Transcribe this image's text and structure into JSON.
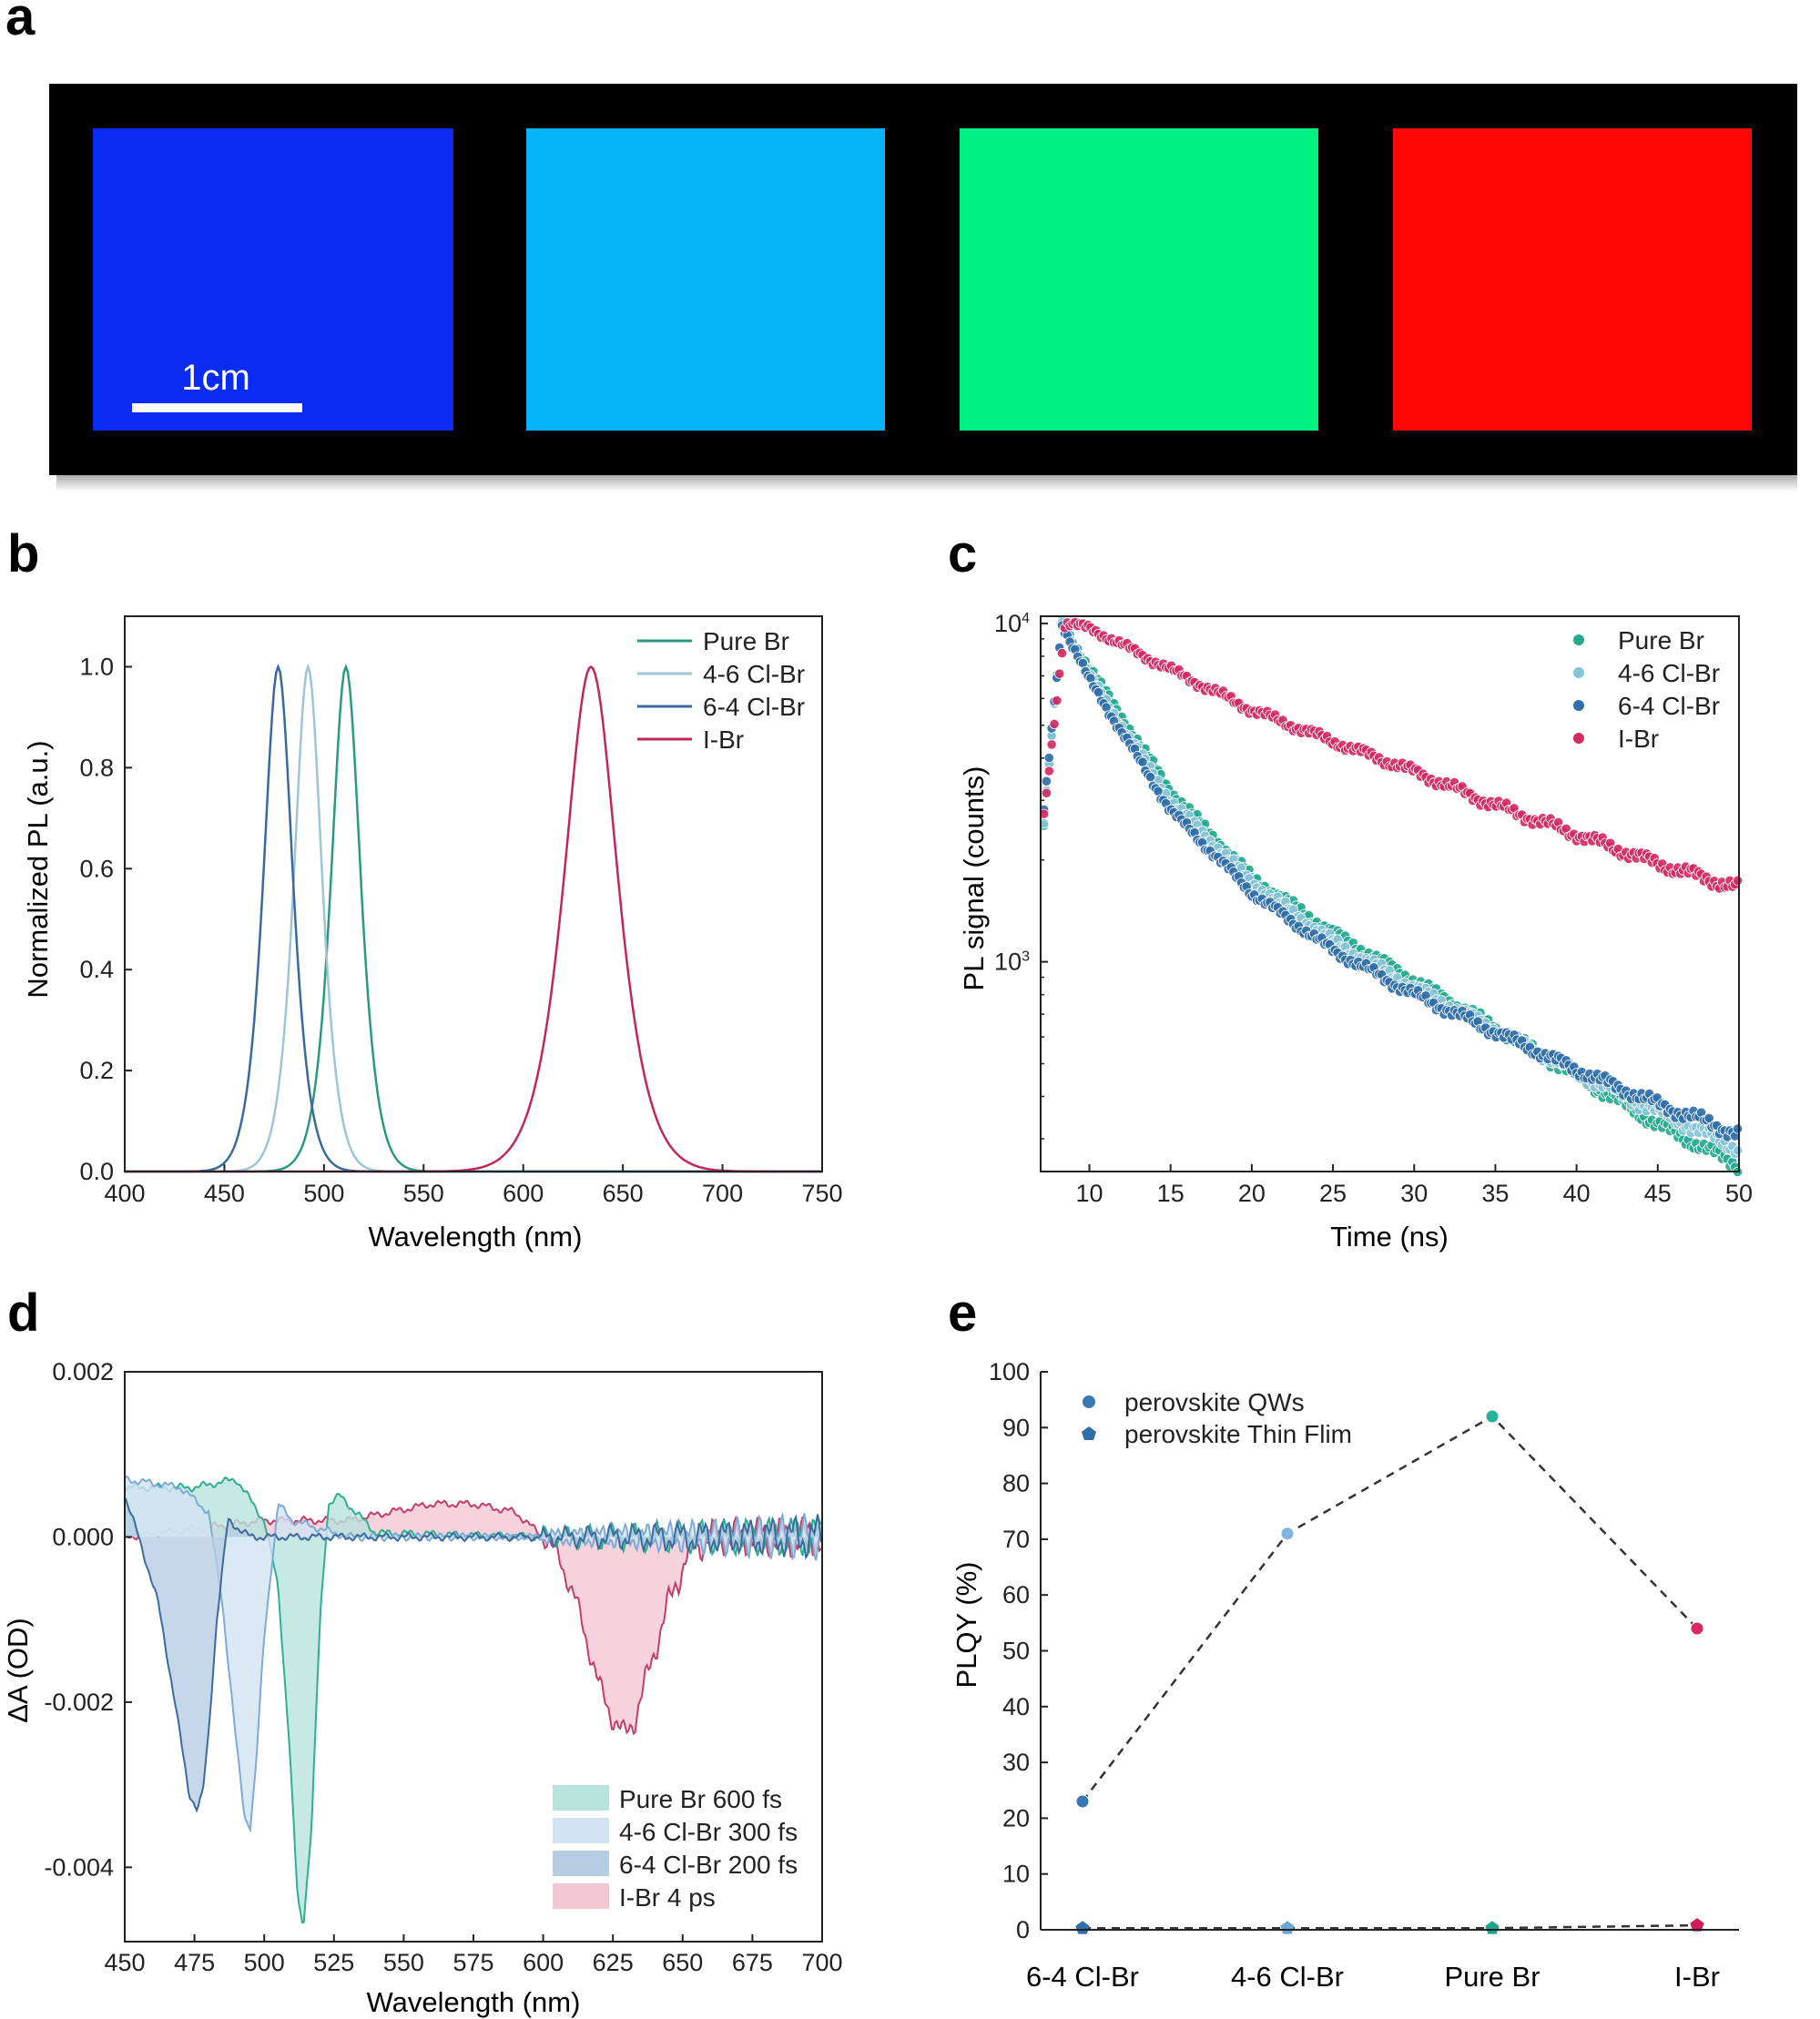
{
  "panel_labels": {
    "a": "a",
    "b": "b",
    "c": "c",
    "d": "d",
    "e": "e"
  },
  "photo": {
    "scale_label": "1cm",
    "samples": [
      {
        "color": "#0a2bf2"
      },
      {
        "color": "#08b4f8"
      },
      {
        "color": "#00f183"
      },
      {
        "color": "#ff0505"
      }
    ]
  },
  "chart_data": [
    {
      "panel": "b",
      "type": "line",
      "xlabel": "Wavelength (nm)",
      "ylabel": "Normalized PL (a.u.)",
      "xlim": [
        400,
        750
      ],
      "ylim": [
        0,
        1.1
      ],
      "xticks": [
        "400",
        "450",
        "500",
        "550",
        "600",
        "650",
        "700",
        "750"
      ],
      "yticks": [
        "0.0",
        "0.2",
        "0.4",
        "0.6",
        "0.8",
        "1.0"
      ],
      "legend_position": "top-right",
      "series": [
        {
          "name": "Pure Br",
          "color": "#2a9a7e",
          "peak_nm": 511,
          "fwhm_nm": 22,
          "x": [
            480,
            495,
            505,
            511,
            517,
            527,
            545
          ],
          "y": [
            0.02,
            0.2,
            0.78,
            1.0,
            0.78,
            0.25,
            0.03
          ]
        },
        {
          "name": "4-6 Cl-Br",
          "color": "#9cc6d8",
          "peak_nm": 492,
          "fwhm_nm": 21,
          "x": [
            465,
            478,
            487,
            492,
            497,
            508,
            525
          ],
          "y": [
            0.02,
            0.25,
            0.8,
            1.0,
            0.8,
            0.25,
            0.03
          ]
        },
        {
          "name": "6-4 Cl-Br",
          "color": "#3a6a9c",
          "peak_nm": 477,
          "fwhm_nm": 22,
          "x": [
            450,
            463,
            472,
            477,
            482,
            493,
            515
          ],
          "y": [
            0.02,
            0.25,
            0.8,
            1.0,
            0.8,
            0.25,
            0.02
          ]
        },
        {
          "name": "I-Br",
          "color": "#c2275c",
          "peak_nm": 634,
          "fwhm_nm": 40,
          "x": [
            580,
            605,
            622,
            634,
            646,
            663,
            690
          ],
          "y": [
            0.02,
            0.2,
            0.75,
            1.0,
            0.75,
            0.2,
            0.02
          ]
        }
      ]
    },
    {
      "panel": "c",
      "type": "scatter",
      "xlabel": "Time (ns)",
      "ylabel": "PL signal (counts)",
      "xlim": [
        7,
        50
      ],
      "ylim": [
        240,
        10500
      ],
      "yscale": "log",
      "xticks": [
        "10",
        "15",
        "20",
        "25",
        "30",
        "35",
        "40",
        "45",
        "50"
      ],
      "yticks": [
        {
          "value": 1000,
          "base": "10",
          "exp": "3"
        },
        {
          "value": 10000,
          "base": "10",
          "exp": "4"
        }
      ],
      "legend_position": "top-right",
      "series": [
        {
          "name": "Pure Br",
          "color": "#25a98f",
          "x": [
            7,
            8.3,
            10,
            15,
            20,
            25,
            30,
            35,
            40,
            45,
            50
          ],
          "y": [
            2000,
            10000,
            7400,
            3200,
            1780,
            1220,
            880,
            640,
            460,
            330,
            250
          ]
        },
        {
          "name": "4-6 Cl-Br",
          "color": "#84c3d6",
          "x": [
            7,
            8.3,
            10,
            15,
            20,
            25,
            30,
            35,
            40,
            45,
            50
          ],
          "y": [
            2000,
            10000,
            7000,
            3000,
            1720,
            1150,
            840,
            630,
            470,
            360,
            280
          ]
        },
        {
          "name": "6-4 Cl-Br",
          "color": "#2f6ea8",
          "x": [
            7,
            8.3,
            10,
            15,
            20,
            25,
            30,
            35,
            40,
            45,
            50
          ],
          "y": [
            2200,
            10000,
            6800,
            2800,
            1600,
            1080,
            800,
            620,
            480,
            380,
            310
          ]
        },
        {
          "name": "I-Br",
          "color": "#d42a63",
          "x": [
            7,
            8.5,
            10,
            15,
            20,
            25,
            30,
            35,
            40,
            45,
            50
          ],
          "y": [
            2200,
            10000,
            9700,
            7300,
            5550,
            4480,
            3650,
            2900,
            2380,
            1950,
            1650
          ]
        }
      ]
    },
    {
      "panel": "d",
      "type": "area",
      "xlabel": "Wavelength (nm)",
      "ylabel": "ΔA (OD)",
      "xlim": [
        450,
        700
      ],
      "ylim": [
        -0.0049,
        0.002
      ],
      "xticks": [
        "450",
        "475",
        "500",
        "525",
        "550",
        "575",
        "600",
        "625",
        "650",
        "675",
        "700"
      ],
      "yticks": [
        {
          "value": 0.002,
          "label": "0.002"
        },
        {
          "value": 0,
          "label": "0.000"
        },
        {
          "value": -0.002,
          "label": "-0.002"
        },
        {
          "value": -0.004,
          "label": "-0.004"
        }
      ],
      "legend_position": "bottom-right",
      "series": [
        {
          "name": "Pure Br 600 fs",
          "fill": "#b9e4dc",
          "stroke": "#2fae92",
          "x": [
            450,
            475,
            490,
            500,
            505,
            509,
            512,
            514,
            517,
            520,
            523,
            527,
            540,
            600,
            700
          ],
          "y": [
            0.0006,
            0.0006,
            0.0007,
            0.0002,
            -0.0006,
            -0.0025,
            -0.0044,
            -0.0047,
            -0.0035,
            -0.001,
            0.0004,
            0.0005,
            5e-05,
            0.0,
            0.0
          ]
        },
        {
          "name": "4-6 Cl-Br 300 fs",
          "fill": "#d2e4f2",
          "stroke": "#7eaad6",
          "x": [
            450,
            470,
            480,
            485,
            490,
            493,
            495,
            497,
            500,
            505,
            510,
            530,
            700
          ],
          "y": [
            0.0007,
            0.0006,
            0.0003,
            -0.0008,
            -0.0025,
            -0.0034,
            -0.0035,
            -0.0028,
            -0.0012,
            0.0004,
            0.0002,
            0.0,
            0.0
          ]
        },
        {
          "name": "6-4 Cl-Br 200 fs",
          "fill": "#b7cde2",
          "stroke": "#3b6b9d",
          "x": [
            450,
            455,
            462,
            468,
            473,
            476,
            478,
            480,
            483,
            487,
            495,
            520,
            600,
            700
          ],
          "y": [
            0.0005,
            0.0,
            -0.0008,
            -0.002,
            -0.0031,
            -0.0033,
            -0.0031,
            -0.0024,
            -0.001,
            0.0002,
            0.0,
            0.0,
            0.0,
            0.0
          ]
        },
        {
          "name": "I-Br 4 ps",
          "fill": "#f4c7d4",
          "stroke": "#c33d6a",
          "x": [
            450,
            500,
            530,
            560,
            575,
            590,
            600,
            605,
            612,
            620,
            625,
            629,
            633,
            638,
            645,
            652,
            660,
            700
          ],
          "y": [
            0.0,
            0.0002,
            0.0002,
            0.0004,
            0.0004,
            0.0003,
            0.0,
            -0.0002,
            -0.0008,
            -0.0018,
            -0.0022,
            -0.0024,
            -0.0022,
            -0.0016,
            -0.0008,
            -0.0002,
            0.0,
            0.0
          ]
        }
      ]
    },
    {
      "panel": "e",
      "type": "scatter",
      "xlabel": "",
      "ylabel": "PLQY (%)",
      "ylim": [
        0,
        100
      ],
      "categories": [
        "6-4 Cl-Br",
        "4-6 Cl-Br",
        "Pure Br",
        "I-Br"
      ],
      "yticks": [
        "0",
        "10",
        "20",
        "30",
        "40",
        "50",
        "60",
        "70",
        "80",
        "90",
        "100"
      ],
      "legend_position": "top-left",
      "series": [
        {
          "name": "perovskite QWs",
          "marker": "circle",
          "values": [
            23,
            71,
            92,
            54
          ],
          "colors": [
            "#3a78b5",
            "#7fb6df",
            "#27b29a",
            "#d8285f"
          ]
        },
        {
          "name": "perovskite Thin Flim",
          "marker": "pentagon",
          "values": [
            0.3,
            0.3,
            0.3,
            0.8
          ],
          "colors": [
            "#2f6ea8",
            "#6aa7d6",
            "#1fa38d",
            "#d01f57"
          ]
        }
      ]
    }
  ]
}
